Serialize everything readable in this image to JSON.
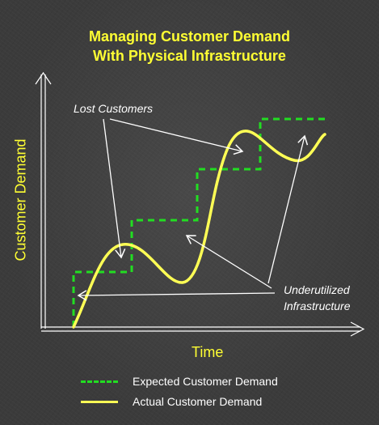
{
  "title": {
    "line1": "Managing Customer Demand",
    "line2": "With Physical Infrastructure"
  },
  "axes": {
    "y_label": "Customer Demand",
    "x_label": "Time"
  },
  "annotations": {
    "lost_customers": "Lost Customers",
    "underutilized_line1": "Underutilized",
    "underutilized_line2": "Infrastructure"
  },
  "legend": {
    "expected": "Expected Customer Demand",
    "actual": "Actual Customer Demand"
  },
  "colors": {
    "background": "#3b3b3b",
    "title_text": "#ffff33",
    "expected_line": "#22dd22",
    "actual_line": "#ffff55",
    "annotation_text": "#ffffff"
  }
}
